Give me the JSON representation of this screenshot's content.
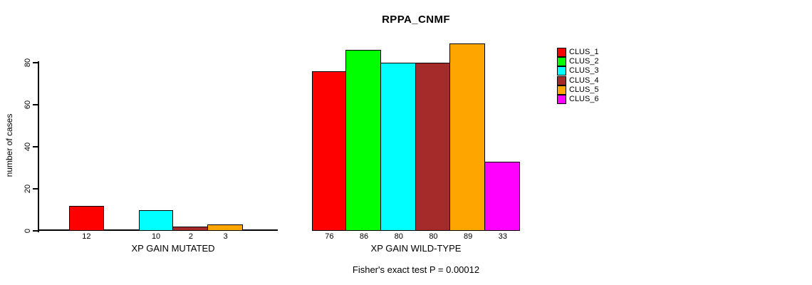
{
  "chart_data": {
    "type": "bar",
    "title": "RPPA_CNMF",
    "ylabel": "number of cases",
    "yticks": [
      0,
      20,
      40,
      60,
      80
    ],
    "ylim": [
      0,
      90
    ],
    "grid": false,
    "legend": {
      "position": "right",
      "entries": [
        {
          "label": "CLUS_1",
          "color": "#ff0000"
        },
        {
          "label": "CLUS_2",
          "color": "#00ff00"
        },
        {
          "label": "CLUS_3",
          "color": "#00ffff"
        },
        {
          "label": "CLUS_4",
          "color": "#a52a2a"
        },
        {
          "label": "CLUS_5",
          "color": "#ffa500"
        },
        {
          "label": "CLUS_6",
          "color": "#ff00ff"
        }
      ]
    },
    "groups": [
      {
        "label": "XP GAIN MUTATED",
        "values": [
          12,
          0,
          10,
          2,
          3,
          0
        ]
      },
      {
        "label": "XP GAIN WILD-TYPE",
        "values": [
          76,
          86,
          80,
          80,
          89,
          33
        ]
      }
    ],
    "annotation": "Fisher's exact test P = 0.00012"
  }
}
